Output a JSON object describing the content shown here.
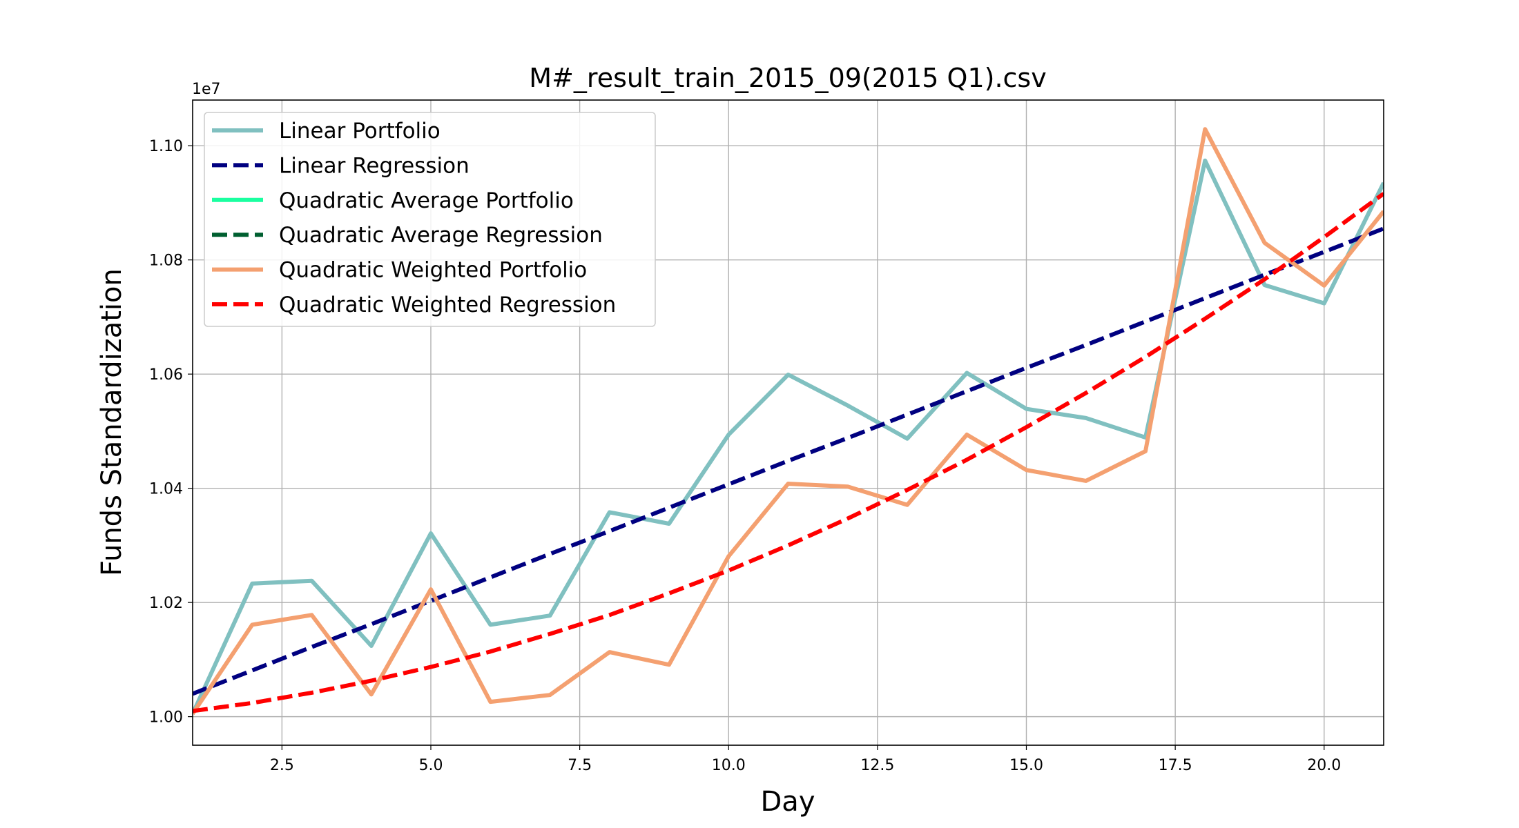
{
  "chart_data": {
    "type": "line",
    "title": "M#_result_train_2015_09(2015 Q1).csv",
    "x_label": "Day",
    "y_label": "Funds Standardization",
    "y_offset_label": "1e7",
    "x": [
      1,
      2,
      3,
      4,
      5,
      6,
      7,
      8,
      9,
      10,
      11,
      12,
      13,
      14,
      15,
      16,
      17,
      18,
      19,
      20,
      21
    ],
    "series": [
      {
        "name": "Linear Portfolio",
        "color": "#80c0c0",
        "dash": false,
        "values": [
          1.0005,
          1.0233,
          1.0238,
          1.0124,
          1.0321,
          1.0161,
          1.0177,
          1.0358,
          1.0338,
          1.0494,
          1.0599,
          1.0545,
          1.0487,
          1.0602,
          1.0539,
          1.0523,
          1.0489,
          1.0974,
          1.0756,
          1.0724,
          1.0935
        ]
      },
      {
        "name": "Linear Regression",
        "color": "#000080",
        "dash": true,
        "values": [
          1.004,
          1.0081,
          1.0122,
          1.0162,
          1.0203,
          1.0244,
          1.0285,
          1.0325,
          1.0366,
          1.0407,
          1.0448,
          1.0488,
          1.0529,
          1.057,
          1.0611,
          1.0651,
          1.0692,
          1.0733,
          1.0774,
          1.0814,
          1.0855
        ]
      },
      {
        "name": "Quadratic Average Portfolio",
        "color": "#1affa0",
        "dash": false,
        "values": [
          null,
          null,
          null,
          null,
          null,
          null,
          null,
          null,
          null,
          null,
          null,
          null,
          null,
          null,
          null,
          null,
          null,
          null,
          null,
          null,
          null
        ]
      },
      {
        "name": "Quadratic Average Regression",
        "color": "#005f30",
        "dash": true,
        "values": [
          null,
          null,
          null,
          null,
          null,
          null,
          null,
          null,
          null,
          null,
          null,
          null,
          null,
          null,
          null,
          null,
          null,
          null,
          null,
          null,
          null
        ]
      },
      {
        "name": "Quadratic Weighted Portfolio",
        "color": "#f4a070",
        "dash": false,
        "values": [
          1.0005,
          1.0161,
          1.0178,
          1.0039,
          1.0223,
          1.0026,
          1.0038,
          1.0113,
          1.0091,
          1.0281,
          1.0408,
          1.0403,
          1.0371,
          1.0494,
          1.0432,
          1.0413,
          1.0465,
          1.1029,
          1.083,
          1.0755,
          1.0885
        ]
      },
      {
        "name": "Quadratic Weighted Regression",
        "color": "#ff0000",
        "dash": true,
        "values": [
          1.001,
          1.0024,
          1.0042,
          1.0063,
          1.0087,
          1.0114,
          1.0145,
          1.0178,
          1.0216,
          1.0256,
          1.03,
          1.0347,
          1.0397,
          1.045,
          1.0507,
          1.0567,
          1.063,
          1.0697,
          1.0766,
          1.084,
          1.0916
        ]
      }
    ],
    "xlim": [
      1,
      21
    ],
    "ylim": [
      0.995,
      1.108
    ],
    "xticks": [
      2.5,
      {
        "value": 5,
        "label": "5.0"
      },
      7.5,
      {
        "value": 10,
        "label": "10.0"
      },
      12.5,
      {
        "value": 15,
        "label": "15.0"
      },
      17.5,
      {
        "value": 20,
        "label": "20.0"
      }
    ],
    "yticks": [
      {
        "value": 1,
        "label": "1.00"
      },
      1.02,
      1.04,
      1.06,
      1.08,
      {
        "value": 1.1,
        "label": "1.10"
      }
    ],
    "grid": true,
    "legend": "upper left"
  }
}
